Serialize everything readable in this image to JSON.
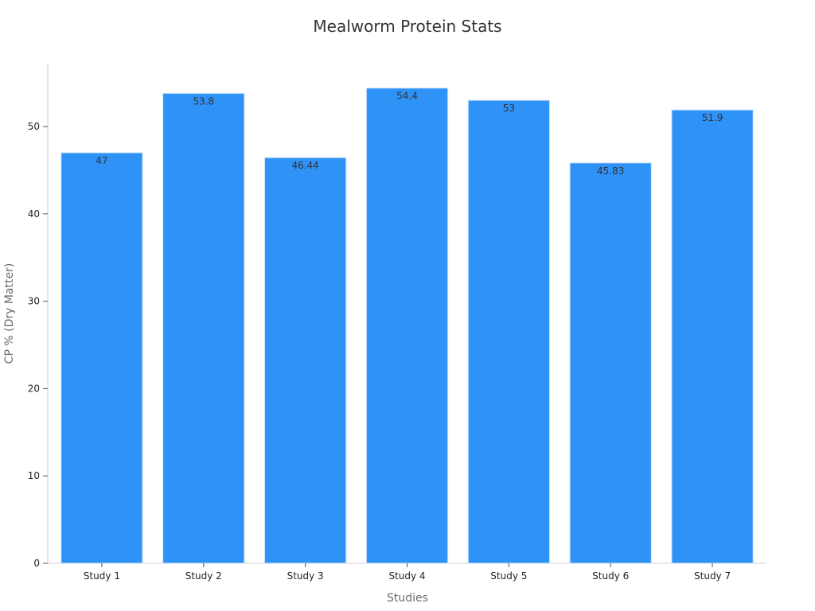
{
  "chart_data": {
    "type": "bar",
    "title": "Mealworm Protein Stats",
    "xlabel": "Studies",
    "ylabel": "CP % (Dry Matter)",
    "categories": [
      "Study 1",
      "Study 2",
      "Study 3",
      "Study 4",
      "Study 5",
      "Study 6",
      "Study 7"
    ],
    "values": [
      47,
      53.8,
      46.44,
      54.4,
      53,
      45.83,
      51.9
    ],
    "value_labels": [
      "47",
      "53.8",
      "46.44",
      "54.4",
      "53",
      "45.83",
      "51.9"
    ],
    "ylim": [
      0,
      57.2
    ],
    "yticks": [
      0,
      10,
      20,
      30,
      40,
      50
    ],
    "grid": false,
    "legend": "none",
    "colors": {
      "bar_fill": "#2f92f7",
      "bar_stroke": "#cfe3fb"
    }
  }
}
